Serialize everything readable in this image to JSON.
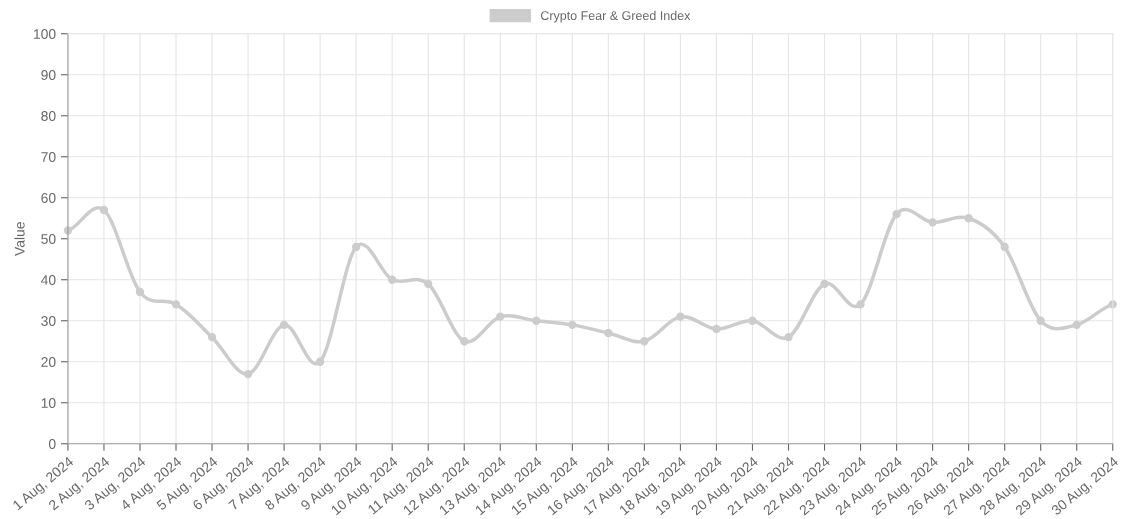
{
  "chart_data": {
    "type": "line",
    "ylabel": "Value",
    "categories": [
      "1 Aug, 2024",
      "2 Aug, 2024",
      "3 Aug, 2024",
      "4 Aug, 2024",
      "5 Aug, 2024",
      "6 Aug, 2024",
      "7 Aug, 2024",
      "8 Aug, 2024",
      "9 Aug, 2024",
      "10 Aug, 2024",
      "11 Aug, 2024",
      "12 Aug, 2024",
      "13 Aug, 2024",
      "14 Aug, 2024",
      "15 Aug, 2024",
      "16 Aug, 2024",
      "17 Aug, 2024",
      "18 Aug, 2024",
      "19 Aug, 2024",
      "20 Aug, 2024",
      "21 Aug, 2024",
      "22 Aug, 2024",
      "23 Aug, 2024",
      "24 Aug, 2024",
      "25 Aug, 2024",
      "26 Aug, 2024",
      "27 Aug, 2024",
      "28 Aug, 2024",
      "29 Aug, 2024",
      "30 Aug, 2024"
    ],
    "series": [
      {
        "name": "Crypto Fear & Greed Index",
        "color": "#cccccc",
        "values": [
          52,
          57,
          37,
          34,
          26,
          17,
          29,
          20,
          48,
          40,
          39,
          25,
          31,
          30,
          29,
          27,
          25,
          31,
          28,
          30,
          26,
          39,
          34,
          56,
          54,
          55,
          48,
          30,
          29,
          34
        ]
      }
    ],
    "ylim": [
      0,
      100
    ],
    "yticks": [
      0,
      10,
      20,
      30,
      40,
      50,
      60,
      70,
      80,
      90,
      100
    ],
    "grid": true,
    "legend": "top",
    "marker": "circle",
    "line_style": "solid"
  }
}
